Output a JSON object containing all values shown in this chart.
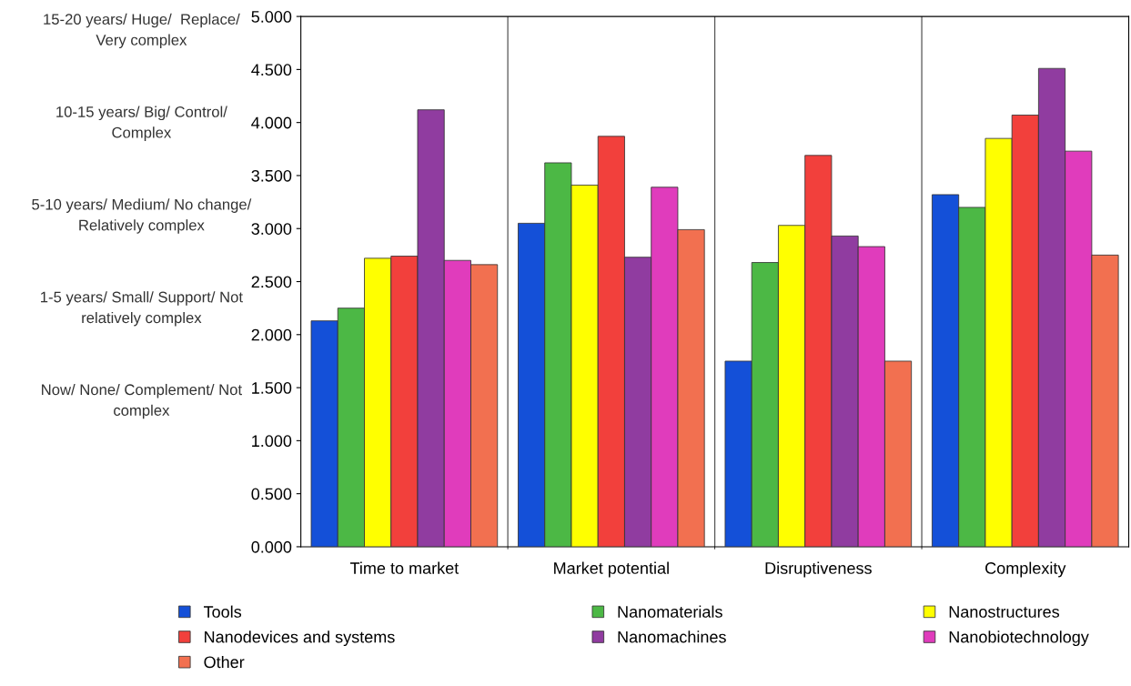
{
  "chart_data": {
    "type": "bar",
    "categories": [
      "Time to market",
      "Market potential",
      "Disruptiveness",
      "Complexity"
    ],
    "series": [
      {
        "name": "Tools",
        "color": "#1450d8",
        "values": [
          2.13,
          3.05,
          1.75,
          3.32
        ]
      },
      {
        "name": "Nanomaterials",
        "color": "#4cb845",
        "values": [
          2.25,
          3.62,
          2.68,
          3.2
        ]
      },
      {
        "name": "Nanostructures",
        "color": "#ffff00",
        "values": [
          2.72,
          3.41,
          3.03,
          3.85
        ]
      },
      {
        "name": "Nanodevices and systems",
        "color": "#f2403c",
        "values": [
          2.74,
          3.87,
          3.69,
          4.07
        ]
      },
      {
        "name": "Nanomachines",
        "color": "#903ca0",
        "values": [
          4.12,
          2.73,
          2.93,
          4.51
        ]
      },
      {
        "name": "Nanobiotechnology",
        "color": "#e03cbc",
        "values": [
          2.7,
          3.39,
          2.83,
          3.73
        ]
      },
      {
        "name": "Other",
        "color": "#f27050",
        "values": [
          2.66,
          2.99,
          1.75,
          2.75
        ]
      }
    ],
    "ylim": [
      0,
      5
    ],
    "yticks": [
      {
        "value": 0,
        "label": "0.000"
      },
      {
        "value": 0.5,
        "label": "0.500"
      },
      {
        "value": 1,
        "label": "1.000"
      },
      {
        "value": 1.5,
        "label": "1.500"
      },
      {
        "value": 2,
        "label": "2.000"
      },
      {
        "value": 2.5,
        "label": "2.500"
      },
      {
        "value": 3,
        "label": "3.000"
      },
      {
        "value": 3.5,
        "label": "3.500"
      },
      {
        "value": 4,
        "label": "4.000"
      },
      {
        "value": 4.5,
        "label": "4.500"
      },
      {
        "value": 5,
        "label": "5.000"
      }
    ],
    "annotations": [
      "15-20 years/ Huge/  Replace/\nVery complex",
      "10-15 years/ Big/ Control/\nComplex",
      "5-10 years/ Medium/ No change/\nRelatively complex",
      "1-5 years/ Small/ Support/ Not\nrelatively complex",
      "Now/ None/ Complement/ Not\ncomplex"
    ],
    "grid": "x",
    "legend": "bottom"
  }
}
